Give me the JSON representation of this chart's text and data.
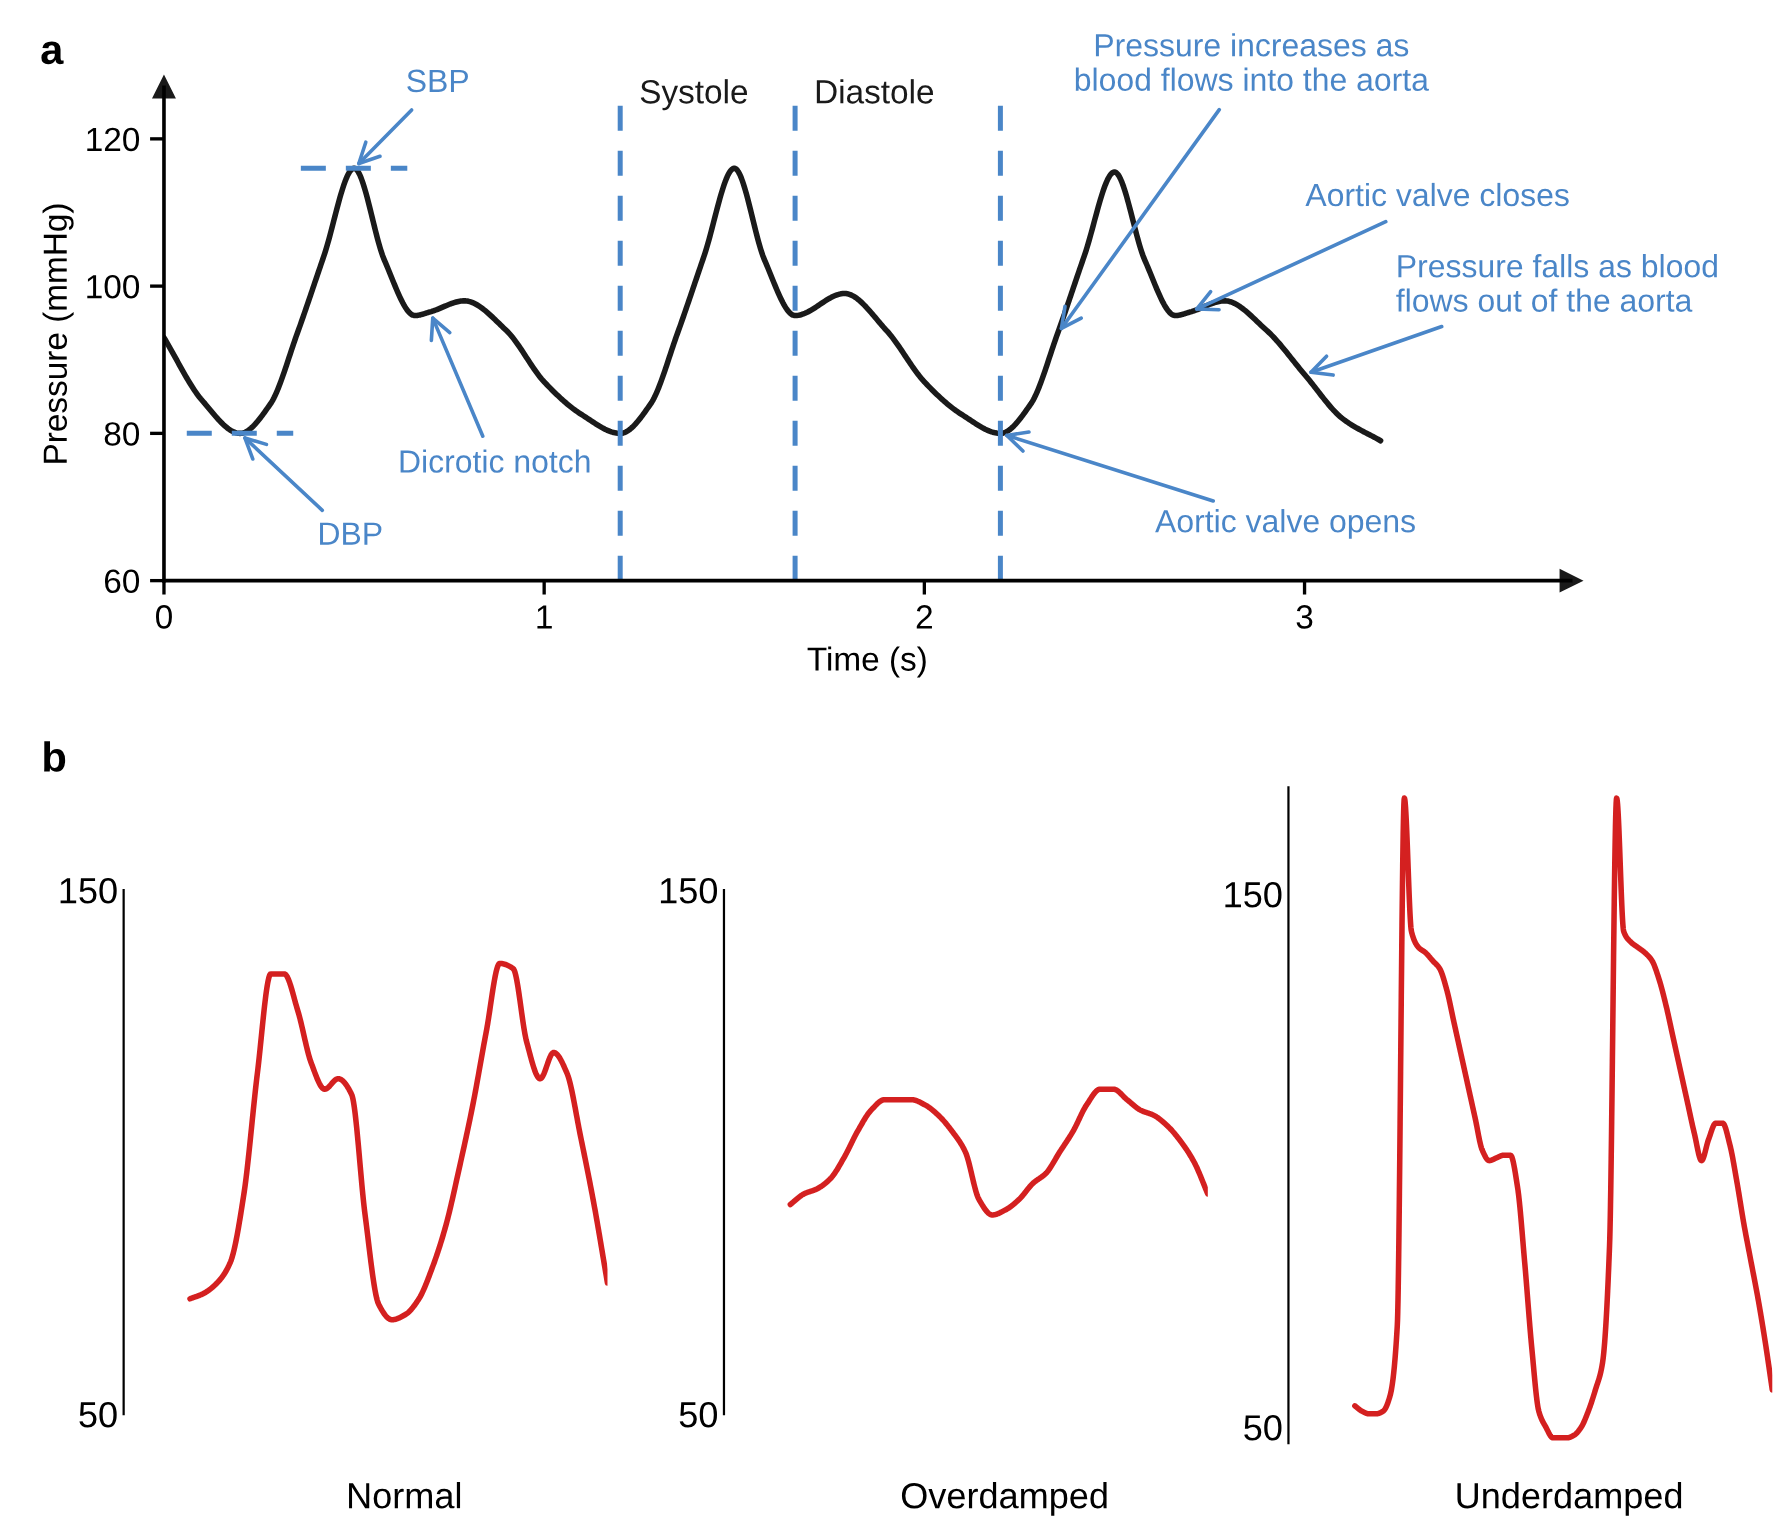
{
  "chart_data": [
    {
      "type": "line",
      "title": "a",
      "xlabel": "Time (s)",
      "ylabel": "Pressure (mmHg)",
      "x": [
        0,
        0.1,
        0.2,
        0.28,
        0.35,
        0.42,
        0.5,
        0.58,
        0.66,
        0.7,
        0.79,
        0.9,
        1.0,
        1.1,
        1.2,
        1.28,
        1.35,
        1.42,
        1.5,
        1.58,
        1.66,
        1.79,
        1.9,
        2.0,
        2.1,
        2.2,
        2.28,
        2.35,
        2.42,
        2.5,
        2.58,
        2.66,
        2.7,
        2.79,
        2.9,
        3.0,
        3.1,
        3.2
      ],
      "values": [
        93,
        84.5,
        80,
        84,
        93.5,
        104,
        116,
        103.5,
        96,
        96.5,
        98,
        94,
        87,
        82.5,
        80,
        84,
        93.5,
        104,
        116,
        103.5,
        96,
        99,
        94,
        87,
        82.5,
        80,
        84,
        93.5,
        104,
        115.5,
        103.5,
        96,
        96.5,
        98,
        94,
        88,
        82,
        79
      ],
      "color": "#1a1a1a",
      "xlim": [
        0,
        3.7
      ],
      "ylim": [
        60,
        127
      ],
      "xticks": [
        0,
        1,
        2,
        3
      ],
      "yticks": [
        60,
        80,
        100,
        120
      ],
      "ref_lines": [
        {
          "axis": "x",
          "value": 1.2,
          "label": "Systole",
          "color": "#4a86c8",
          "line_style": "dashed"
        },
        {
          "axis": "x",
          "value": 1.66,
          "label": "Diastole",
          "color": "#4a86c8",
          "line_style": "dashed"
        },
        {
          "axis": "x",
          "value": 2.2,
          "color": "#4a86c8",
          "line_style": "dashed"
        }
      ],
      "annotations": [
        {
          "text": "SBP",
          "x": 0.5,
          "y": 116
        },
        {
          "text": "DBP",
          "x": 0.2,
          "y": 80
        },
        {
          "text": "Dicrotic notch",
          "x": 0.7,
          "y": 96.5
        },
        {
          "text": "Pressure increases as\nblood flows into the aorta",
          "x": 2.35,
          "y": 93.5
        },
        {
          "text": "Aortic valve closes",
          "x": 2.7,
          "y": 96.5
        },
        {
          "text": "Pressure falls as blood\nflows out of the aorta",
          "x": 3.0,
          "y": 88
        },
        {
          "text": "Aortic valve opens",
          "x": 2.2,
          "y": 80
        }
      ]
    },
    {
      "type": "line",
      "title": "b",
      "xlabel": "Normal",
      "tick_labels": "y",
      "categories": [
        null,
        null,
        null,
        null,
        null,
        null,
        null,
        null,
        null,
        null,
        null,
        null,
        null,
        null,
        null,
        null,
        null,
        null,
        null,
        null,
        null,
        null,
        null,
        null,
        null,
        null,
        null,
        null,
        null,
        null,
        null,
        null
      ],
      "values": [
        72,
        73,
        75,
        79,
        92,
        115,
        134,
        134,
        127,
        117,
        112,
        114,
        111,
        88,
        71,
        68,
        69,
        72,
        78,
        86,
        97,
        109,
        123,
        136,
        135,
        121,
        114,
        119,
        115,
        103,
        90,
        75
      ],
      "color": "#d42020",
      "ylim": [
        50,
        150
      ],
      "yticks": [
        50,
        150
      ]
    },
    {
      "type": "line",
      "xlabel": "Overdamped",
      "tick_labels": "y",
      "categories": [
        null,
        null,
        null,
        null,
        null,
        null,
        null,
        null,
        null,
        null,
        null,
        null,
        null,
        null,
        null,
        null,
        null,
        null,
        null,
        null,
        null,
        null,
        null,
        null,
        null,
        null,
        null,
        null,
        null,
        null,
        null,
        null
      ],
      "values": [
        90,
        92,
        93,
        95,
        99,
        104,
        108,
        110,
        110,
        110,
        109,
        107,
        104,
        100,
        91,
        88,
        89,
        91,
        94,
        96,
        100,
        104,
        109,
        112,
        112,
        110,
        108,
        107,
        105,
        102,
        98,
        92
      ],
      "color": "#d42020",
      "ylim": [
        50,
        150
      ],
      "yticks": [
        50,
        150
      ]
    },
    {
      "type": "line",
      "xlabel": "Underdamped",
      "tick_labels": "y",
      "categories": [
        null,
        null,
        null,
        null,
        null,
        null,
        null,
        null,
        null,
        null,
        null,
        null,
        null,
        null,
        null,
        null,
        null,
        null,
        null,
        null,
        null,
        null,
        null,
        null,
        null,
        null,
        null,
        null,
        null,
        null,
        null,
        null,
        null,
        null,
        null,
        null,
        null,
        null,
        null,
        null,
        null,
        null,
        null,
        null,
        null,
        null,
        null,
        null,
        null,
        null,
        null,
        null,
        null,
        null,
        null,
        null,
        null,
        null,
        null,
        null
      ],
      "values": [
        54,
        53,
        52.5,
        52.5,
        53,
        56,
        69,
        168,
        143,
        140,
        139,
        137.5,
        136,
        132,
        126,
        120,
        114,
        108,
        102,
        100,
        100.5,
        101,
        101,
        95,
        81,
        65,
        53,
        50,
        48,
        48,
        48,
        48.5,
        50,
        53,
        57,
        62,
        84,
        168,
        143,
        141,
        140,
        139,
        137.5,
        134,
        129,
        123,
        117,
        111,
        105,
        100,
        104,
        107,
        107,
        103,
        96,
        88,
        81,
        74,
        66,
        57
      ],
      "color": "#d42020",
      "ylim": [
        47,
        170
      ],
      "yticks": [
        50,
        150
      ]
    }
  ]
}
